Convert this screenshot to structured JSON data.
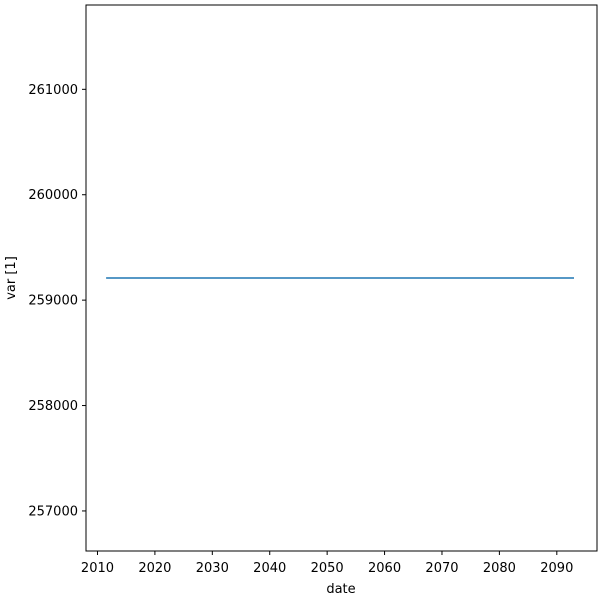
{
  "chart_data": {
    "type": "line",
    "title": "",
    "xlabel": "date",
    "ylabel": "var [1]",
    "xlim": [
      2008,
      2097
    ],
    "ylim": [
      256620,
      261800
    ],
    "grid": false,
    "legend": "none",
    "x_ticks": [
      2010,
      2020,
      2030,
      2040,
      2050,
      2060,
      2070,
      2080,
      2090
    ],
    "y_ticks": [
      257000,
      258000,
      259000,
      260000,
      261000
    ],
    "series": [
      {
        "color": "#1f77b4",
        "x": [
          2011.5,
          2093
        ],
        "y": [
          259210,
          259210
        ]
      }
    ]
  }
}
